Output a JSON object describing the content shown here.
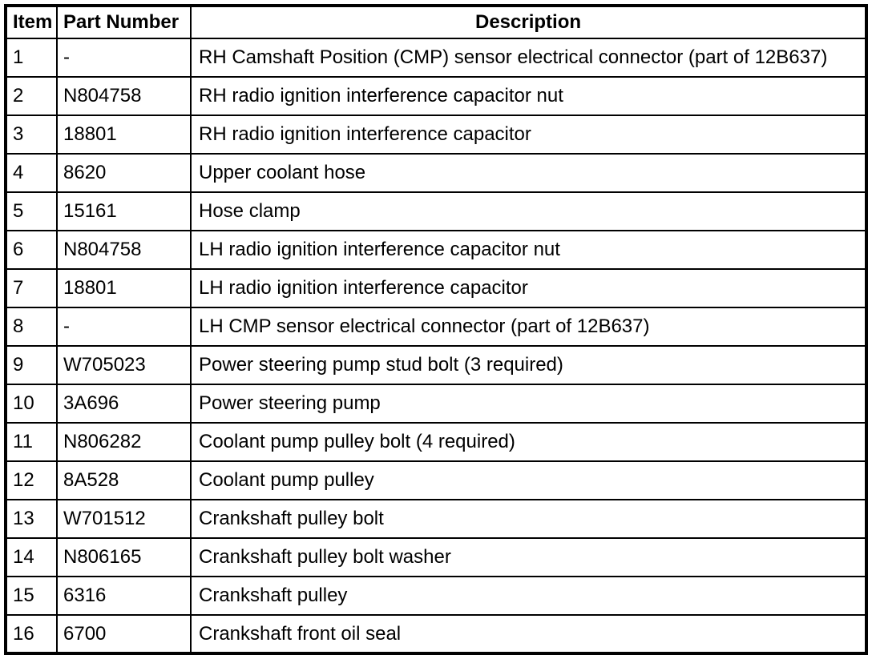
{
  "colors": {
    "background": "#ffffff",
    "border": "#000000",
    "text": "#000000"
  },
  "table": {
    "columns": [
      {
        "key": "item",
        "label": "Item"
      },
      {
        "key": "part_number",
        "label": "Part Number"
      },
      {
        "key": "description",
        "label": "Description"
      }
    ],
    "rows": [
      {
        "item": "1",
        "part_number": "-",
        "description": "RH Camshaft Position (CMP) sensor electrical connector (part of 12B637)"
      },
      {
        "item": "2",
        "part_number": "N804758",
        "description": "RH radio ignition interference capacitor nut"
      },
      {
        "item": "3",
        "part_number": "18801",
        "description": "RH radio ignition interference capacitor"
      },
      {
        "item": "4",
        "part_number": "8620",
        "description": "Upper coolant hose"
      },
      {
        "item": "5",
        "part_number": "15161",
        "description": "Hose clamp"
      },
      {
        "item": "6",
        "part_number": "N804758",
        "description": "LH radio ignition interference capacitor nut"
      },
      {
        "item": "7",
        "part_number": "18801",
        "description": "LH radio ignition interference capacitor"
      },
      {
        "item": "8",
        "part_number": "-",
        "description": "LH CMP sensor electrical connector (part of 12B637)"
      },
      {
        "item": "9",
        "part_number": "W705023",
        "description": "Power steering pump stud bolt (3 required)"
      },
      {
        "item": "10",
        "part_number": "3A696",
        "description": "Power steering pump"
      },
      {
        "item": "11",
        "part_number": "N806282",
        "description": "Coolant pump pulley bolt (4 required)"
      },
      {
        "item": "12",
        "part_number": "8A528",
        "description": "Coolant pump pulley"
      },
      {
        "item": "13",
        "part_number": "W701512",
        "description": "Crankshaft pulley bolt"
      },
      {
        "item": "14",
        "part_number": "N806165",
        "description": "Crankshaft pulley bolt washer"
      },
      {
        "item": "15",
        "part_number": "6316",
        "description": "Crankshaft pulley"
      },
      {
        "item": "16",
        "part_number": "6700",
        "description": "Crankshaft front oil seal"
      }
    ]
  }
}
